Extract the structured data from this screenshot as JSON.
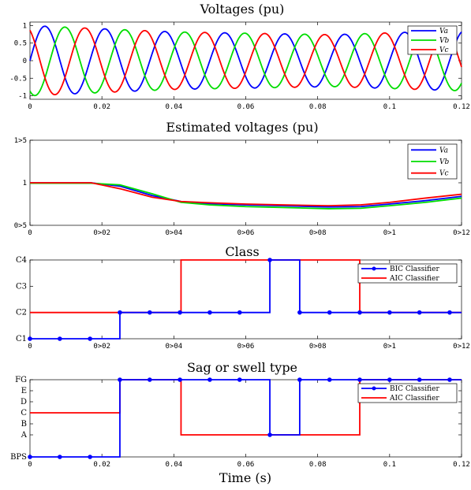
{
  "chart_data": [
    {
      "type": "line",
      "title": "Voltages (pu)",
      "xlabel": "",
      "xlim": [
        0,
        0.12
      ],
      "ylim": [
        -1.1,
        1.1
      ],
      "xticks": [
        0,
        0.02,
        0.04,
        0.06,
        0.08,
        0.1,
        0.12
      ],
      "xtick_labels": [
        "0",
        "0.02",
        "0.04",
        "0.06",
        "0.08",
        "0.1",
        "0.12"
      ],
      "yticks": [
        1,
        0.5,
        0,
        -0.5,
        -1
      ],
      "ytick_labels": [
        "1",
        "0.5",
        "0",
        "-0.5",
        "-1"
      ],
      "frequency_hz": 60,
      "amplitude_envelope": {
        "t": [
          0,
          0.04,
          0.084,
          0.12
        ],
        "amplitude": [
          1.0,
          0.82,
          0.74,
          0.86
        ]
      },
      "series": [
        {
          "name": "Va",
          "color": "#0000ff",
          "phase_deg": 0
        },
        {
          "name": "Vb",
          "color": "#00dd00",
          "phase_deg": -120
        },
        {
          "name": "Vc",
          "color": "#ff0000",
          "phase_deg": 120
        }
      ],
      "legend": "top-right"
    },
    {
      "type": "line",
      "title": "Estimated voltages (pu)",
      "xlabel": "",
      "xlim": [
        0,
        0.12
      ],
      "ylim": [
        0.5,
        1.5
      ],
      "xtick_labels": [
        "0",
        "0>02",
        "0>04",
        "0>06",
        "0>08",
        "0>1",
        "0>12"
      ],
      "ytick_labels": [
        "1>5",
        "1",
        "0>5"
      ],
      "series": [
        {
          "name": "Va",
          "color": "#0000ff",
          "x": [
            0,
            0.017,
            0.025,
            0.034,
            0.042,
            0.05,
            0.06,
            0.07,
            0.083,
            0.092,
            0.1,
            0.11,
            0.12
          ],
          "y": [
            1.0,
            1.0,
            0.96,
            0.85,
            0.78,
            0.755,
            0.74,
            0.73,
            0.715,
            0.72,
            0.75,
            0.79,
            0.84
          ]
        },
        {
          "name": "Vb",
          "color": "#00dd00",
          "x": [
            0,
            0.017,
            0.025,
            0.034,
            0.042,
            0.05,
            0.06,
            0.07,
            0.083,
            0.092,
            0.1,
            0.11,
            0.12
          ],
          "y": [
            0.995,
            0.995,
            0.975,
            0.87,
            0.77,
            0.74,
            0.72,
            0.71,
            0.695,
            0.7,
            0.73,
            0.77,
            0.82
          ]
        },
        {
          "name": "Vc",
          "color": "#ff0000",
          "x": [
            0,
            0.017,
            0.025,
            0.034,
            0.042,
            0.05,
            0.06,
            0.07,
            0.083,
            0.092,
            0.1,
            0.11,
            0.12
          ],
          "y": [
            1.0,
            1.0,
            0.93,
            0.83,
            0.78,
            0.765,
            0.75,
            0.74,
            0.73,
            0.74,
            0.77,
            0.82,
            0.865
          ]
        }
      ],
      "legend": "top-right"
    },
    {
      "type": "line",
      "title": "Class",
      "xlabel": "",
      "xlim": [
        0,
        0.12
      ],
      "ylim": [
        1,
        4
      ],
      "xtick_labels": [
        "0",
        "0>02",
        "0>04",
        "0>06",
        "0>08",
        "0>1",
        "0>12"
      ],
      "ytick_labels": [
        "C4",
        "C3",
        "C2",
        "C1"
      ],
      "series": [
        {
          "name": "BIC Classifier",
          "color": "#0000ff",
          "marker": "dot",
          "x": [
            0,
            0.0083,
            0.0167,
            0.025,
            0.0333,
            0.0417,
            0.05,
            0.0583,
            0.0667,
            0.075,
            0.0833,
            0.0917,
            0.1,
            0.1083,
            0.1167
          ],
          "y": [
            1,
            1,
            1,
            2,
            2,
            2,
            2,
            2,
            4,
            2,
            2,
            2,
            2,
            2,
            2
          ]
        },
        {
          "name": "AIC Classifier",
          "color": "#ff0000",
          "steps": [
            [
              0,
              2
            ],
            [
              0.042,
              4
            ],
            [
              0.0917,
              2
            ],
            [
              0.12,
              2
            ]
          ]
        }
      ],
      "legend": "top-right"
    },
    {
      "type": "line",
      "title": "Sag or swell type",
      "xlabel": "Time (s)",
      "xlim": [
        0,
        0.12
      ],
      "ylim": [
        0,
        7
      ],
      "xtick_labels": [
        "0",
        "0.02",
        "0.04",
        "0.06",
        "0.08",
        "0.1",
        "0.12"
      ],
      "ytick_labels": [
        "FG",
        "E",
        "D",
        "C",
        "B",
        "A",
        "BPS"
      ],
      "series": [
        {
          "name": "BIC Classifier",
          "color": "#0000ff",
          "marker": "dot",
          "x": [
            0,
            0.0083,
            0.0167,
            0.025,
            0.0333,
            0.0417,
            0.05,
            0.0583,
            0.0667,
            0.075,
            0.0833,
            0.0917,
            0.1,
            0.1083,
            0.1167
          ],
          "y": [
            0,
            0,
            0,
            7,
            7,
            7,
            7,
            7,
            2,
            7,
            7,
            7,
            7,
            7,
            7
          ]
        },
        {
          "name": "AIC Classifier",
          "color": "#ff0000",
          "steps": [
            [
              0,
              4
            ],
            [
              0.025,
              7
            ],
            [
              0.042,
              2
            ],
            [
              0.0917,
              7
            ],
            [
              0.12,
              7
            ]
          ]
        }
      ],
      "legend": "top-right"
    }
  ]
}
